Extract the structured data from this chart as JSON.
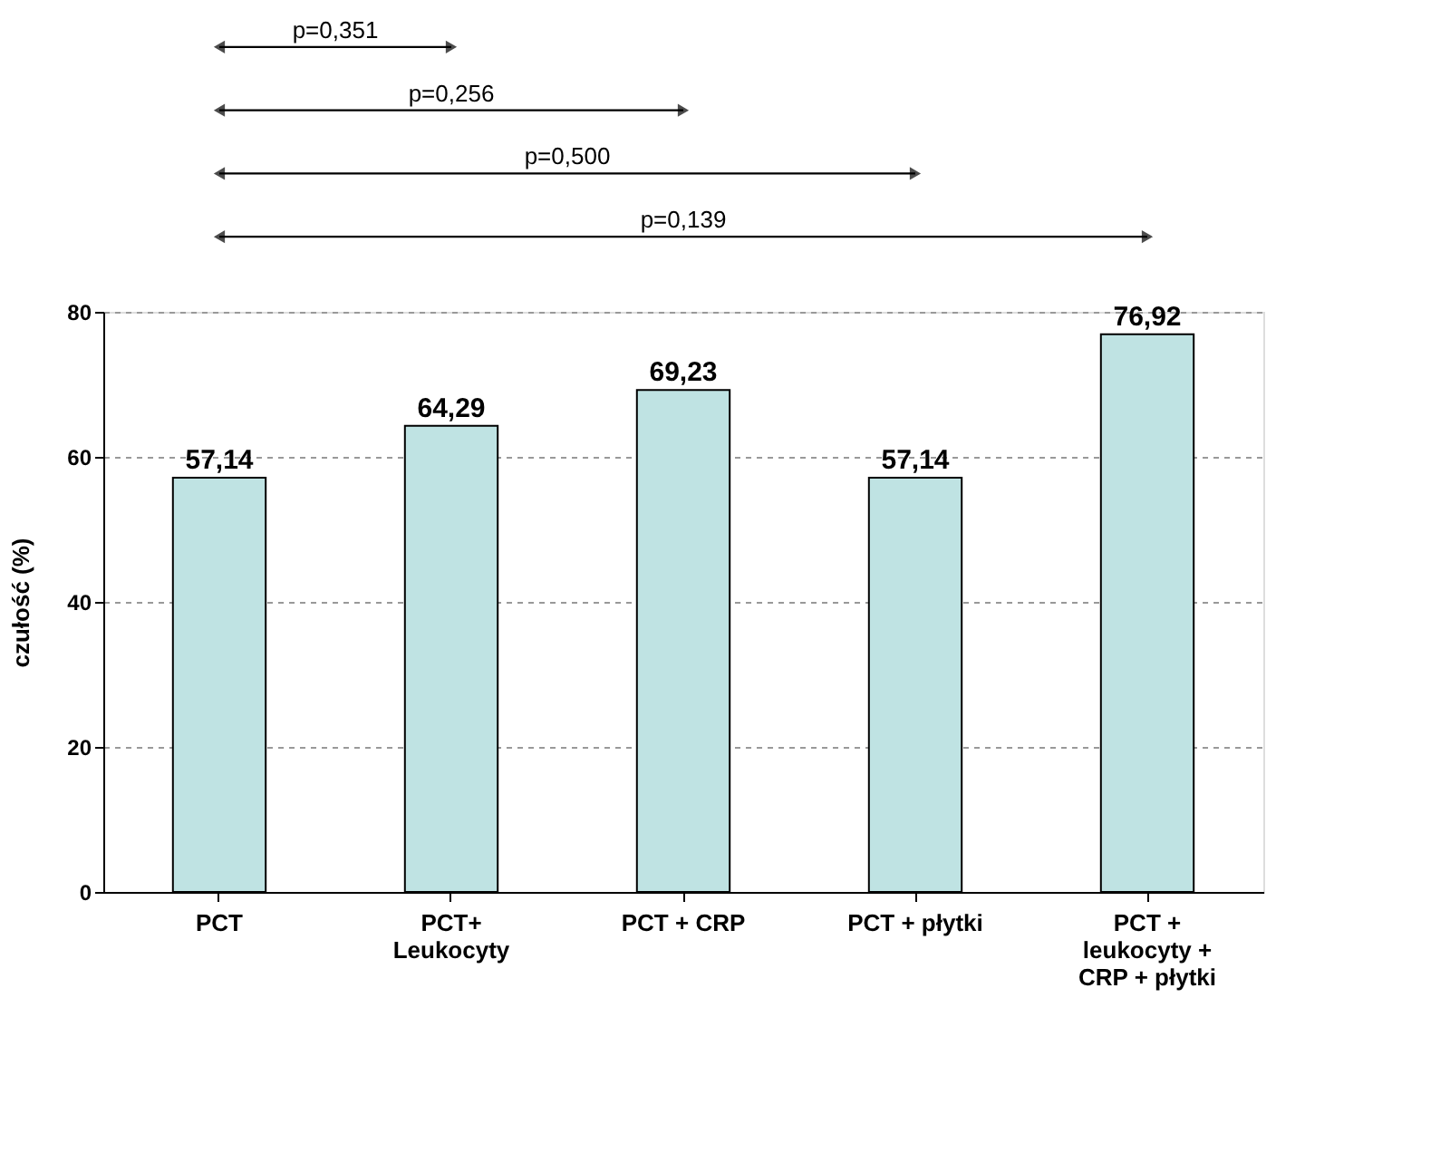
{
  "chart_data": {
    "type": "bar",
    "ylabel": "czułość (%)",
    "categories": [
      "PCT",
      "PCT+\nLeukocyty",
      "PCT + CRP",
      "PCT + płytki",
      "PCT +\nleukocyty +\nCRP + płytki"
    ],
    "values": [
      57.14,
      64.29,
      69.23,
      57.14,
      76.92
    ],
    "color": "#bfe3e3",
    "ylim": [
      0,
      80
    ],
    "yticks": [
      0,
      20,
      40,
      60,
      80
    ],
    "grid": "y",
    "value_labels": [
      "57,14",
      "64,29",
      "69,23",
      "57,14",
      "76,92"
    ],
    "annotations": [
      "p=0,351",
      "p=0,256",
      "p=0,500",
      "p=0,139"
    ]
  }
}
